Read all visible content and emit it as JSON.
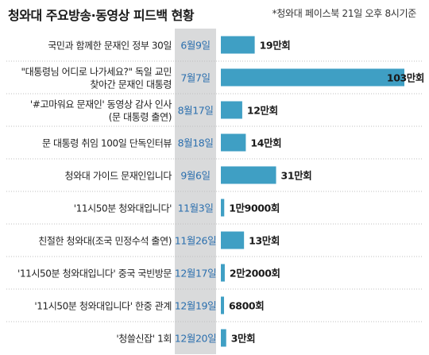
{
  "chart_data": {
    "type": "bar",
    "orientation": "horizontal",
    "title": "청와대 주요방송·동영상 피드백 현황",
    "note": "*청와대 페이스북 21일 오후 8시기준",
    "unit": "만회",
    "xlim": [
      0,
      103
    ],
    "grid": false,
    "colors": {
      "bar": "#3f9fc4",
      "date_column": "#d9dadb",
      "date_text": "#2b6fae",
      "divider": "#bfbfbf"
    },
    "rows": [
      {
        "label_lines": [
          "국민과 함께한 문재인 정부 30일"
        ],
        "date": "6월9일",
        "value": 19,
        "value_label": "19만회"
      },
      {
        "label_lines": [
          "\"대통령님 어디로 나가세요?\" 독일 교민",
          "찾아간 문재인 대통령"
        ],
        "date": "7월7일",
        "value": 103,
        "value_label": "103만회"
      },
      {
        "label_lines": [
          "'#고마워요 문재인' 동영상 감사 인사",
          "(문 대통령 출연)"
        ],
        "date": "8월17일",
        "value": 12,
        "value_label": "12만회"
      },
      {
        "label_lines": [
          "문 대통령 취임 100일 단독인터뷰"
        ],
        "date": "8월18일",
        "value": 14,
        "value_label": "14만회"
      },
      {
        "label_lines": [
          "청와대 가이드 문재인입니다"
        ],
        "date": "9월6일",
        "value": 31,
        "value_label": "31만회"
      },
      {
        "label_lines": [
          "'11시50분 청와대입니다'"
        ],
        "date": "11월3일",
        "value": 1.9,
        "value_label": "1만9000회"
      },
      {
        "label_lines": [
          "친절한 청와대(조국 민정수석 출연)"
        ],
        "date": "11월26일",
        "value": 13,
        "value_label": "13만회"
      },
      {
        "label_lines": [
          "'11시50분 청와대입니다' 중국 국빈방문"
        ],
        "date": "12월17일",
        "value": 2.2,
        "value_label": "2만2000회"
      },
      {
        "label_lines": [
          "'11시50분 청와대입니다' 한중 관계"
        ],
        "date": "12월19일",
        "value": 0.68,
        "value_label": "6800회"
      },
      {
        "label_lines": [
          "'청쓸신잡' 1회"
        ],
        "date": "12월20일",
        "value": 3,
        "value_label": "3만회"
      }
    ]
  }
}
